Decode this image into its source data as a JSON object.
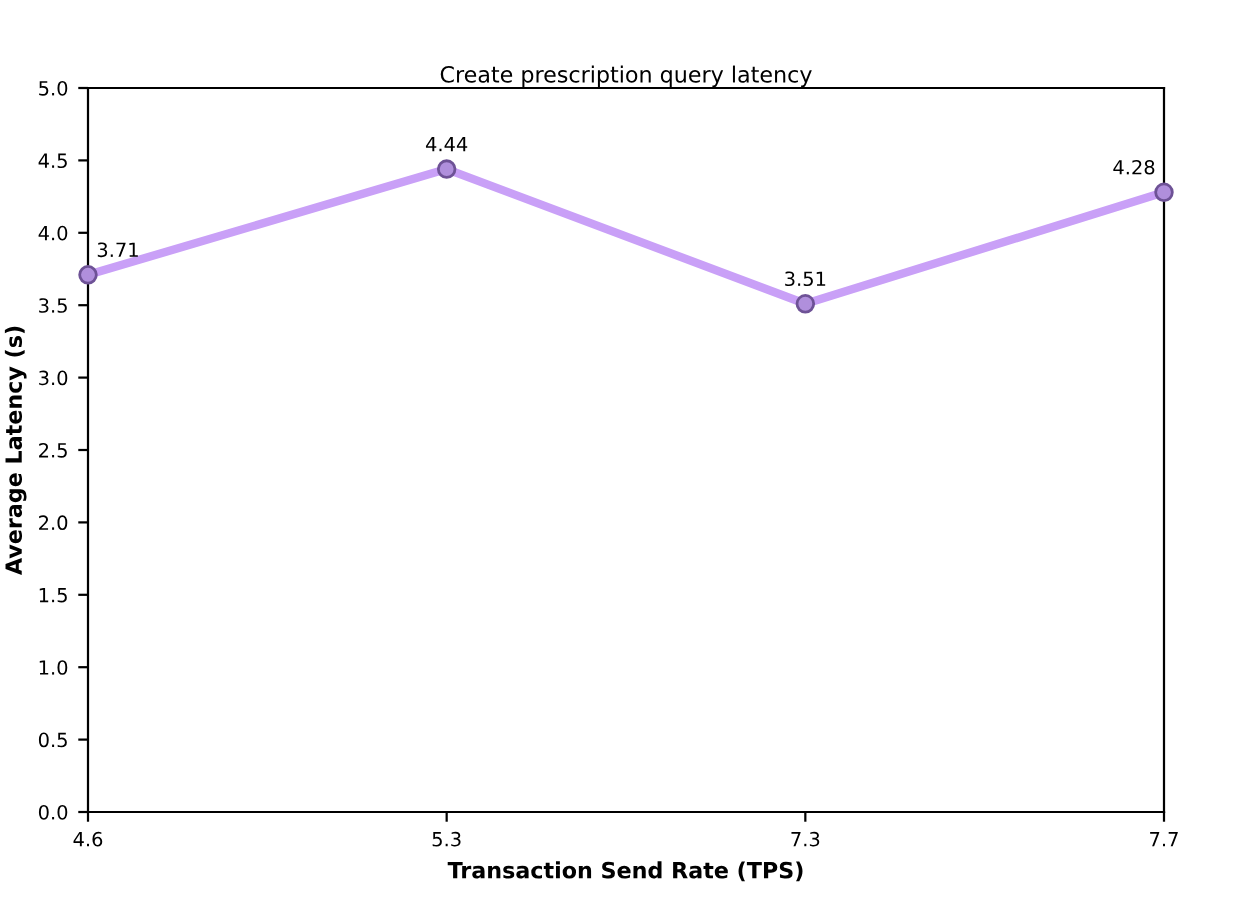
{
  "chart_data": {
    "type": "line",
    "title": "Create prescription query latency",
    "xlabel": "Transaction Send Rate (TPS)",
    "ylabel": "Average Latency (s)",
    "categories": [
      "4.6",
      "5.3",
      "7.3",
      "7.7"
    ],
    "series": [
      {
        "color": "#c9a0f7",
        "values": [
          3.71,
          4.44,
          3.51,
          4.28
        ]
      }
    ],
    "ylim": [
      0,
      5
    ],
    "yticks": [
      {
        "value": 0,
        "label": "0.0"
      },
      0.5,
      {
        "value": 1,
        "label": "1.0"
      },
      1.5,
      {
        "value": 2,
        "label": "2.0"
      },
      2.5,
      {
        "value": 3,
        "label": "3.0"
      },
      3.5,
      {
        "value": 4,
        "label": "4.0"
      },
      4.5,
      {
        "value": 5,
        "label": "5.0"
      }
    ],
    "marker": "circle",
    "data_labels": true,
    "grid": false,
    "legend": false
  }
}
